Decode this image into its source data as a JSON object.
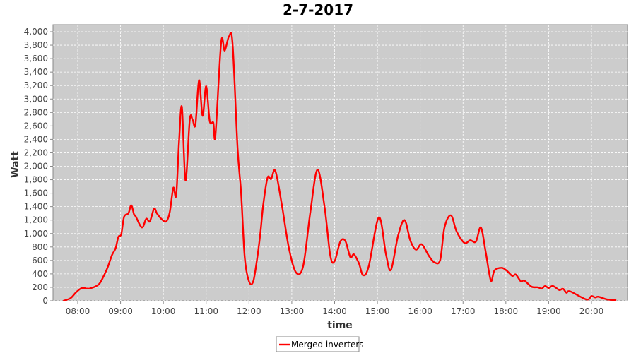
{
  "chart_data": {
    "type": "line",
    "title": "2-7-2017",
    "xlabel": "time",
    "ylabel": "Watt",
    "ylim": [
      0,
      4000
    ],
    "xlim": [
      "07:25",
      "20:50"
    ],
    "y_ticks": [
      "0",
      "200",
      "400",
      "600",
      "800",
      "1,000",
      "1,200",
      "1,400",
      "1,600",
      "1,800",
      "2,000",
      "2,200",
      "2,400",
      "2,600",
      "2,800",
      "3,000",
      "3,200",
      "3,400",
      "3,600",
      "3,800",
      "4,000"
    ],
    "x_ticks": [
      "08:00",
      "09:00",
      "10:00",
      "11:00",
      "12:00",
      "13:00",
      "14:00",
      "15:00",
      "16:00",
      "17:00",
      "18:00",
      "19:00",
      "20:00"
    ],
    "grid": true,
    "legend_position": "bottom",
    "background_color": "#cccccc",
    "series": [
      {
        "name": "Merged inverters",
        "color": "#ff0000",
        "x": [
          "07:40",
          "07:50",
          "07:58",
          "08:06",
          "08:14",
          "08:22",
          "08:30",
          "08:36",
          "08:42",
          "08:48",
          "08:53",
          "08:57",
          "09:01",
          "09:05",
          "09:11",
          "09:15",
          "09:19",
          "09:21",
          "09:30",
          "09:36",
          "09:41",
          "09:47",
          "09:51",
          "09:57",
          "10:04",
          "10:09",
          "10:14",
          "10:18",
          "10:22",
          "10:26",
          "10:31",
          "10:37",
          "10:41",
          "10:45",
          "10:50",
          "10:55",
          "11:00",
          "11:05",
          "11:10",
          "11:13",
          "11:21",
          "11:26",
          "11:32",
          "11:37",
          "11:44",
          "11:49",
          "11:54",
          "12:00",
          "12:06",
          "12:12",
          "12:16",
          "12:20",
          "12:26",
          "12:31",
          "12:37",
          "12:46",
          "12:56",
          "13:06",
          "13:16",
          "13:26",
          "13:36",
          "13:46",
          "13:54",
          "14:00",
          "14:08",
          "14:15",
          "14:22",
          "14:27",
          "14:34",
          "14:40",
          "14:48",
          "15:02",
          "15:12",
          "15:19",
          "15:29",
          "15:38",
          "15:46",
          "15:54",
          "16:02",
          "16:12",
          "16:20",
          "16:28",
          "16:34",
          "16:43",
          "16:51",
          "17:02",
          "17:10",
          "17:18",
          "17:25",
          "17:32",
          "17:39",
          "17:44",
          "17:54",
          "18:01",
          "18:09",
          "18:14",
          "18:21",
          "18:26",
          "18:36",
          "18:45",
          "18:50",
          "18:55",
          "19:00",
          "19:06",
          "19:15",
          "19:20",
          "19:25",
          "19:30",
          "19:53",
          "20:00",
          "20:05",
          "20:10",
          "20:22",
          "20:34"
        ],
        "values": [
          0,
          40,
          130,
          190,
          180,
          200,
          250,
          360,
          500,
          680,
          780,
          950,
          990,
          1250,
          1300,
          1420,
          1280,
          1260,
          1090,
          1220,
          1180,
          1370,
          1300,
          1220,
          1180,
          1320,
          1680,
          1570,
          2370,
          2880,
          1790,
          2690,
          2690,
          2620,
          3280,
          2750,
          3190,
          2670,
          2650,
          2460,
          3840,
          3720,
          3930,
          3820,
          2270,
          1600,
          650,
          290,
          290,
          670,
          1010,
          1430,
          1830,
          1810,
          1930,
          1430,
          780,
          420,
          520,
          1320,
          1950,
          1390,
          670,
          590,
          880,
          890,
          650,
          690,
          560,
          380,
          520,
          1240,
          690,
          460,
          970,
          1200,
          900,
          760,
          840,
          670,
          570,
          610,
          1090,
          1270,
          1030,
          860,
          900,
          880,
          1090,
          710,
          300,
          450,
          490,
          450,
          370,
          390,
          290,
          300,
          210,
          200,
          180,
          220,
          190,
          220,
          160,
          180,
          120,
          140,
          20,
          70,
          50,
          60,
          20,
          10
        ]
      }
    ]
  }
}
